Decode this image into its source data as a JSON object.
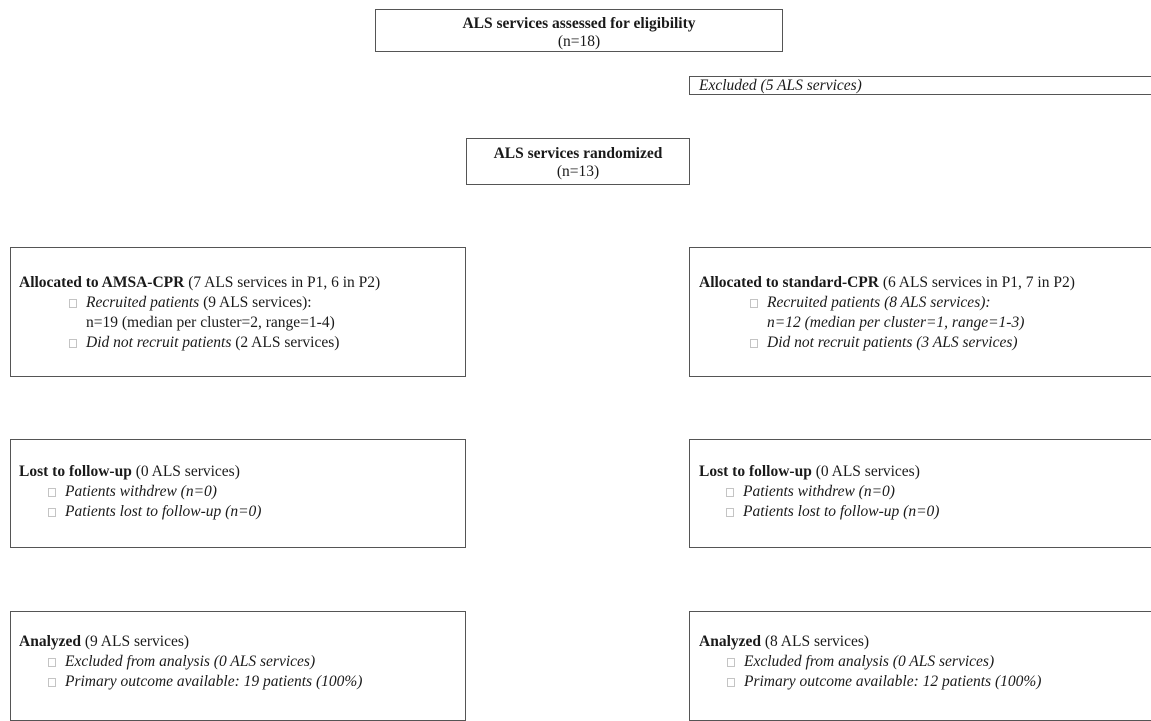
{
  "eligibility": {
    "title": "ALS services assessed for eligibility",
    "count": "(n=18)"
  },
  "excluded": {
    "text": "Excluded (5 ALS services)"
  },
  "randomized": {
    "title": "ALS services randomized",
    "count": "(n=13)"
  },
  "left": {
    "allocation": {
      "title": "Allocated to AMSA-CPR",
      "detail": " (7 ALS services in P1, 6 in P2)",
      "bullet1_italic": "Recruited patients",
      "bullet1_rest": " (9 ALS services):",
      "bullet1_line2": "n=19 (median per cluster=2, range=1-4)",
      "bullet2_italic": "Did not recruit patients",
      "bullet2_rest": " (2 ALS services)"
    },
    "followup": {
      "title": "Lost to follow-up",
      "detail": " (0 ALS services)",
      "bullet1": "Patients withdrew (n=0)",
      "bullet2": "Patients lost to follow-up (n=0)"
    },
    "analyzed": {
      "title": "Analyzed",
      "detail": " (9 ALS services)",
      "bullet1": "Excluded from analysis (0 ALS services)",
      "bullet2": "Primary outcome available: 19 patients (100%)"
    }
  },
  "right": {
    "allocation": {
      "title": "Allocated to standard-CPR",
      "detail": " (6 ALS services in P1, 7 in P2)",
      "bullet1": "Recruited patients (8 ALS services):",
      "bullet1_line2": "n=12 (median per cluster=1, range=1-3)",
      "bullet2": "Did not recruit patients (3 ALS services)"
    },
    "followup": {
      "title": "Lost to follow-up",
      "detail": " (0 ALS services)",
      "bullet1": "Patients withdrew (n=0)",
      "bullet2": "Patients lost to follow-up (n=0)"
    },
    "analyzed": {
      "title": "Analyzed",
      "detail": " (8 ALS services)",
      "bullet1": "Excluded from analysis (0 ALS services)",
      "bullet2": "Primary outcome available: 12 patients (100%)"
    }
  }
}
